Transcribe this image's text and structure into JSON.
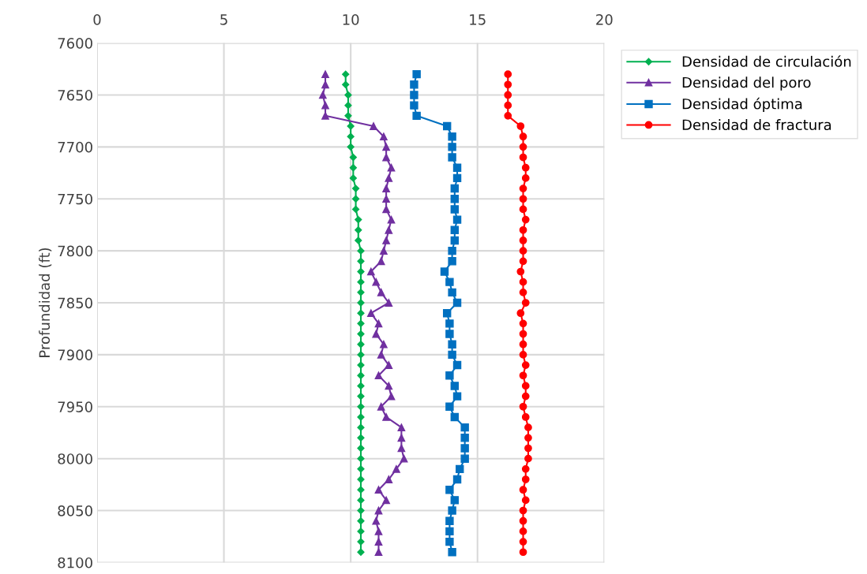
{
  "chart_data": {
    "type": "line",
    "ylabel": "Profundidad (ft)",
    "xlim": [
      0,
      20
    ],
    "xticks": [
      0,
      5,
      10,
      15,
      20
    ],
    "ylim": [
      8100,
      7600
    ],
    "yticks": [
      7600,
      7650,
      7700,
      7750,
      7800,
      7850,
      7900,
      7950,
      8000,
      8050,
      8100
    ],
    "grid": true,
    "legend": "right",
    "line_style": "solid",
    "series": [
      {
        "name": "Densidad de circulación",
        "color": "#00b050",
        "marker": "diamond",
        "x": [
          9.8,
          9.8,
          9.9,
          9.9,
          9.9,
          10.0,
          10.0,
          10.0,
          10.1,
          10.1,
          10.1,
          10.2,
          10.2,
          10.2,
          10.3,
          10.3,
          10.3,
          10.4,
          10.4,
          10.4,
          10.4,
          10.4,
          10.4,
          10.4,
          10.4,
          10.4,
          10.4,
          10.4,
          10.4,
          10.4,
          10.4,
          10.4,
          10.4,
          10.4,
          10.4,
          10.4,
          10.4,
          10.4,
          10.4,
          10.4,
          10.4,
          10.4,
          10.4,
          10.4,
          10.4,
          10.4,
          10.4
        ],
        "values": [
          7630,
          7640,
          7650,
          7660,
          7670,
          7680,
          7690,
          7700,
          7710,
          7720,
          7730,
          7740,
          7750,
          7760,
          7770,
          7780,
          7790,
          7800,
          7810,
          7820,
          7830,
          7840,
          7850,
          7860,
          7870,
          7880,
          7890,
          7900,
          7910,
          7920,
          7930,
          7940,
          7950,
          7960,
          7970,
          7980,
          7990,
          8000,
          8010,
          8020,
          8030,
          8040,
          8050,
          8060,
          8070,
          8080,
          8090
        ]
      },
      {
        "name": "Densidad del poro",
        "color": "#7030a0",
        "marker": "triangle",
        "x": [
          9.0,
          9.0,
          8.9,
          9.0,
          9.0,
          10.9,
          11.3,
          11.4,
          11.4,
          11.6,
          11.5,
          11.4,
          11.4,
          11.4,
          11.6,
          11.5,
          11.4,
          11.3,
          11.2,
          10.8,
          11.0,
          11.2,
          11.5,
          10.8,
          11.1,
          11.0,
          11.3,
          11.2,
          11.5,
          11.1,
          11.5,
          11.6,
          11.2,
          11.4,
          12.0,
          12.0,
          12.0,
          12.1,
          11.8,
          11.5,
          11.1,
          11.4,
          11.1,
          11.0,
          11.1,
          11.1,
          11.1
        ],
        "values": [
          7630,
          7640,
          7650,
          7660,
          7670,
          7680,
          7690,
          7700,
          7710,
          7720,
          7730,
          7740,
          7750,
          7760,
          7770,
          7780,
          7790,
          7800,
          7810,
          7820,
          7830,
          7840,
          7850,
          7860,
          7870,
          7880,
          7890,
          7900,
          7910,
          7920,
          7930,
          7940,
          7950,
          7960,
          7970,
          7980,
          7990,
          8000,
          8010,
          8020,
          8030,
          8040,
          8050,
          8060,
          8070,
          8080,
          8090
        ]
      },
      {
        "name": "Densidad óptima",
        "color": "#0070c0",
        "marker": "square",
        "x": [
          12.6,
          12.5,
          12.5,
          12.5,
          12.6,
          13.8,
          14.0,
          14.0,
          14.0,
          14.2,
          14.2,
          14.1,
          14.1,
          14.1,
          14.2,
          14.1,
          14.1,
          14.0,
          14.0,
          13.7,
          13.9,
          14.0,
          14.2,
          13.8,
          13.9,
          13.9,
          14.0,
          14.0,
          14.2,
          13.9,
          14.1,
          14.2,
          13.9,
          14.1,
          14.5,
          14.5,
          14.5,
          14.5,
          14.3,
          14.2,
          13.9,
          14.1,
          14.0,
          13.9,
          13.9,
          13.9,
          14.0
        ],
        "values": [
          7630,
          7640,
          7650,
          7660,
          7670,
          7680,
          7690,
          7700,
          7710,
          7720,
          7730,
          7740,
          7750,
          7760,
          7770,
          7780,
          7790,
          7800,
          7810,
          7820,
          7830,
          7840,
          7850,
          7860,
          7870,
          7880,
          7890,
          7900,
          7910,
          7920,
          7930,
          7940,
          7950,
          7960,
          7970,
          7980,
          7990,
          8000,
          8010,
          8020,
          8030,
          8040,
          8050,
          8060,
          8070,
          8080,
          8090
        ]
      },
      {
        "name": "Densidad de fractura",
        "color": "#ff0000",
        "marker": "circle",
        "x": [
          16.2,
          16.2,
          16.2,
          16.2,
          16.2,
          16.7,
          16.8,
          16.8,
          16.8,
          16.9,
          16.9,
          16.8,
          16.8,
          16.8,
          16.9,
          16.8,
          16.8,
          16.8,
          16.8,
          16.7,
          16.8,
          16.8,
          16.9,
          16.7,
          16.8,
          16.8,
          16.8,
          16.8,
          16.9,
          16.8,
          16.9,
          16.9,
          16.8,
          16.9,
          17.0,
          17.0,
          17.0,
          17.0,
          16.9,
          16.9,
          16.8,
          16.9,
          16.8,
          16.8,
          16.8,
          16.8,
          16.8
        ],
        "values": [
          7630,
          7640,
          7650,
          7660,
          7670,
          7680,
          7690,
          7700,
          7710,
          7720,
          7730,
          7740,
          7750,
          7760,
          7770,
          7780,
          7790,
          7800,
          7810,
          7820,
          7830,
          7840,
          7850,
          7860,
          7870,
          7880,
          7890,
          7900,
          7910,
          7920,
          7930,
          7940,
          7950,
          7960,
          7970,
          7980,
          7990,
          8000,
          8010,
          8020,
          8030,
          8040,
          8050,
          8060,
          8070,
          8080,
          8090
        ]
      }
    ]
  }
}
